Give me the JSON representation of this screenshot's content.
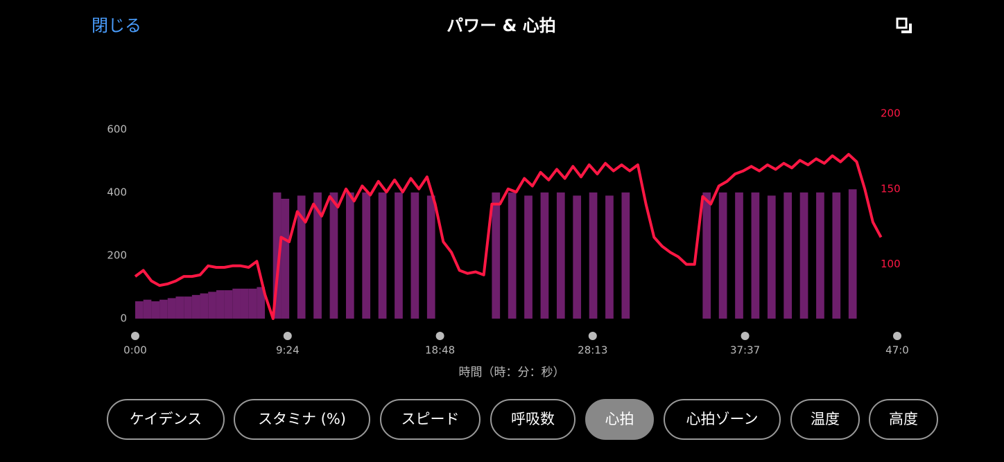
{
  "header": {
    "close": "閉じる",
    "title": "パワー & 心拍"
  },
  "chart_data": {
    "type": "combo",
    "x": [
      0,
      30,
      60,
      90,
      120,
      150,
      180,
      210,
      240,
      270,
      300,
      330,
      360,
      390,
      420,
      450,
      480,
      510,
      540,
      570,
      600,
      630,
      660,
      690,
      720,
      750,
      780,
      810,
      840,
      870,
      900,
      930,
      960,
      990,
      1020,
      1050,
      1080,
      1110,
      1140,
      1170,
      1200,
      1230,
      1260,
      1290,
      1320,
      1350,
      1380,
      1410,
      1440,
      1470,
      1500,
      1530,
      1560,
      1590,
      1620,
      1650,
      1680,
      1710,
      1740,
      1770,
      1800,
      1830,
      1860,
      1890,
      1920,
      1950,
      1980,
      2010,
      2040,
      2070,
      2100,
      2130,
      2160,
      2190,
      2220,
      2250,
      2280,
      2310,
      2340,
      2370,
      2400,
      2430,
      2460,
      2490,
      2520,
      2550,
      2580,
      2610,
      2640,
      2670,
      2700,
      2730,
      2760
    ],
    "xlim": [
      0,
      2820
    ],
    "xticks": [
      {
        "value": 0,
        "label": "0:00"
      },
      {
        "value": 564,
        "label": "9:24"
      },
      {
        "value": 1128,
        "label": "18:48"
      },
      {
        "value": 1693,
        "label": "28:13"
      },
      {
        "value": 2257,
        "label": "37:37"
      },
      {
        "value": 2820,
        "label": "47:0"
      }
    ],
    "xlabel": "時間（時：分：秒）",
    "ylim": [
      0,
      650
    ],
    "yticks": [
      0,
      200,
      400,
      600
    ],
    "y2lim": [
      64,
      200
    ],
    "y2ticks": [
      100,
      150,
      200
    ],
    "series": [
      {
        "color": "#6e1f6c",
        "values": [
          55,
          60,
          55,
          60,
          65,
          70,
          70,
          75,
          80,
          85,
          90,
          90,
          95,
          95,
          95,
          100,
          0,
          400,
          380,
          0,
          390,
          0,
          400,
          0,
          400,
          0,
          400,
          0,
          400,
          0,
          400,
          0,
          400,
          0,
          400,
          0,
          390,
          0,
          0,
          0,
          0,
          0,
          0,
          0,
          400,
          0,
          400,
          0,
          390,
          0,
          400,
          0,
          400,
          0,
          390,
          0,
          400,
          0,
          390,
          0,
          400,
          0,
          0,
          0,
          0,
          0,
          0,
          0,
          0,
          0,
          400,
          0,
          400,
          0,
          400,
          0,
          400,
          0,
          390,
          0,
          400,
          0,
          400,
          0,
          400,
          0,
          400,
          0,
          410,
          0,
          0,
          0,
          0
        ]
      },
      {
        "color": "#ff1744",
        "axis": "y2",
        "values": [
          92,
          96,
          89,
          86,
          87,
          89,
          92,
          92,
          93,
          99,
          98,
          98,
          99,
          99,
          98,
          102,
          80,
          64,
          118,
          115,
          135,
          128,
          140,
          132,
          145,
          138,
          150,
          142,
          152,
          146,
          155,
          148,
          156,
          148,
          157,
          150,
          158,
          140,
          115,
          108,
          96,
          94,
          95,
          93,
          140,
          140,
          150,
          148,
          157,
          152,
          161,
          156,
          163,
          157,
          165,
          158,
          166,
          160,
          167,
          162,
          166,
          162,
          166,
          140,
          118,
          112,
          108,
          105,
          100,
          100,
          145,
          140,
          152,
          155,
          160,
          162,
          165,
          162,
          166,
          163,
          167,
          164,
          169,
          166,
          170,
          167,
          172,
          168,
          173,
          168,
          150,
          128,
          118
        ]
      }
    ]
  },
  "buttons": [
    "ケイデンス",
    "スタミナ (%)",
    "スピード",
    "呼吸数",
    "心拍",
    "心拍ゾーン",
    "温度",
    "高度"
  ],
  "active_button": 4
}
